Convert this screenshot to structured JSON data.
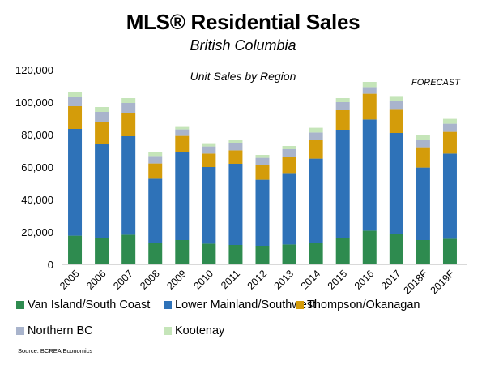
{
  "chart_data": {
    "type": "bar",
    "stacked": true,
    "title": "MLS® Residential Sales",
    "subtitle": "British Columbia",
    "chart_title": "Unit Sales by Region",
    "annotation": "FORECAST",
    "xlabel": "",
    "ylabel": "",
    "ylim": [
      0,
      120000
    ],
    "yticks": [
      0,
      20000,
      40000,
      60000,
      80000,
      100000,
      120000
    ],
    "ytick_labels": [
      "0",
      "20,000",
      "40,000",
      "60,000",
      "80,000",
      "100,000",
      "120,000"
    ],
    "grid": false,
    "legend_position": "bottom",
    "categories": [
      "2005",
      "2006",
      "2007",
      "2008",
      "2009",
      "2010",
      "2011",
      "2012",
      "2013",
      "2014",
      "2015",
      "2016",
      "2017",
      "2018F",
      "2019F"
    ],
    "series": [
      {
        "name": "Van Island/South Coast",
        "color": "#2e8b4f",
        "values": [
          17700,
          16300,
          18300,
          13000,
          15000,
          12800,
          12000,
          11500,
          12300,
          13500,
          16300,
          20800,
          18500,
          15000,
          15800
        ]
      },
      {
        "name": "Lower Mainland/Southwest",
        "color": "#2e72b8",
        "values": [
          65800,
          58200,
          60700,
          39800,
          54300,
          47200,
          50000,
          40700,
          44000,
          51700,
          66700,
          68500,
          62500,
          44700,
          52500
        ]
      },
      {
        "name": "Thompson/Okanagan",
        "color": "#d49c0a",
        "values": [
          14000,
          13500,
          14500,
          9400,
          9900,
          8300,
          8300,
          8800,
          10000,
          11500,
          12500,
          15900,
          14800,
          12500,
          13400
        ]
      },
      {
        "name": "Northern BC",
        "color": "#a9b4cc",
        "values": [
          5500,
          6000,
          6000,
          4600,
          4000,
          4400,
          4700,
          4700,
          4700,
          4600,
          4500,
          4100,
          4700,
          4800,
          5000
        ]
      },
      {
        "name": "Kootenay",
        "color": "#c5e5b9",
        "values": [
          3500,
          3000,
          3000,
          2200,
          2000,
          2000,
          2000,
          1800,
          2000,
          2900,
          2500,
          3200,
          3300,
          3000,
          3000
        ]
      }
    ]
  },
  "source": "Source: BCREA Economics"
}
